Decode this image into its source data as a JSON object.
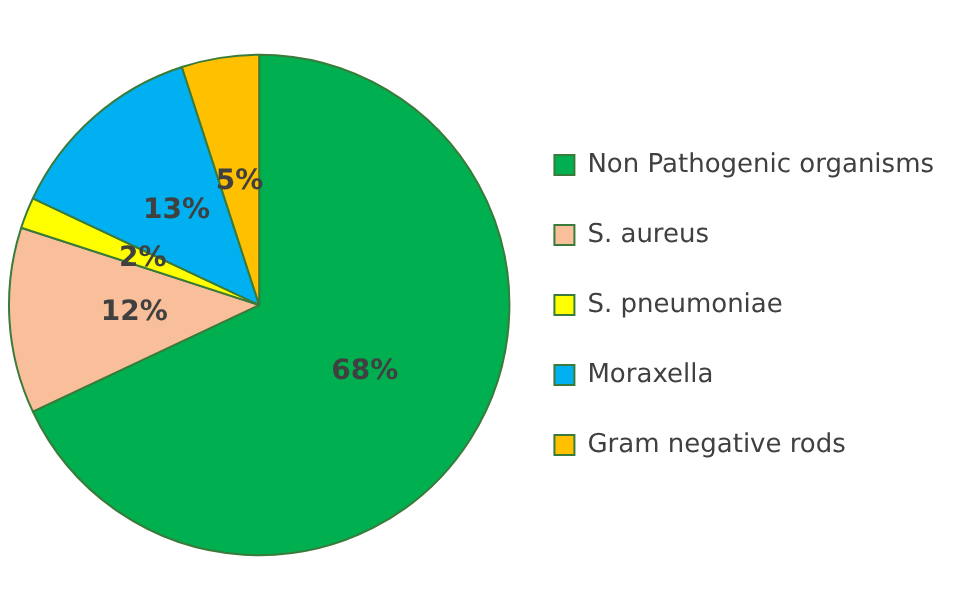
{
  "chart_data": {
    "type": "pie",
    "categories": [
      "Non Pathogenic organisms",
      "S. aureus",
      "S. pneumoniae",
      "Moraxella",
      "Gram negative rods"
    ],
    "values": [
      68,
      12,
      2,
      13,
      5
    ],
    "colors": [
      "#00b050",
      "#f9bf9b",
      "#ffff00",
      "#00b0f0",
      "#ffc000"
    ],
    "value_labels": [
      "68%",
      "12%",
      "2%",
      "13%",
      "5%"
    ],
    "legend": "right"
  }
}
